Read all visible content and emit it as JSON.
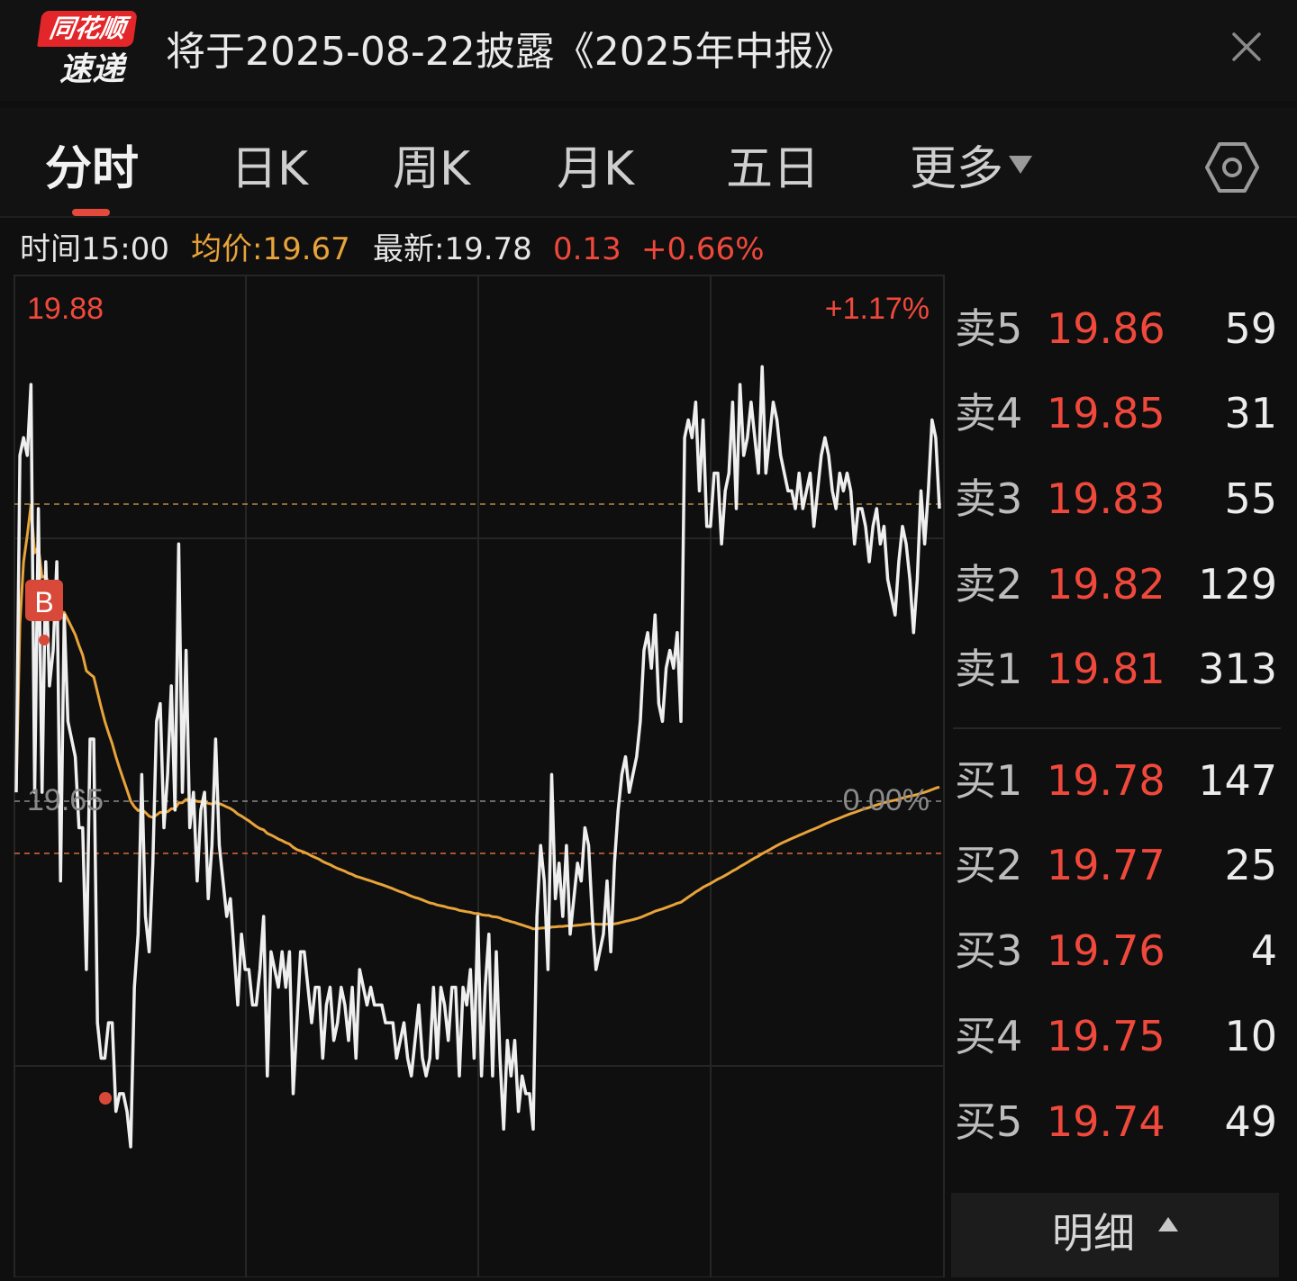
{
  "header": {
    "logo_top": "同花顺",
    "logo_bottom": "速递",
    "headline": "将于2025-08-22披露《2025年中报》",
    "close_icon": "close-icon"
  },
  "tabs": [
    {
      "label": "分时",
      "active": true
    },
    {
      "label": "日K"
    },
    {
      "label": "周K"
    },
    {
      "label": "月K"
    },
    {
      "label": "五日"
    },
    {
      "label": "更多"
    }
  ],
  "settings_icon": "hexagon-settings-icon",
  "info": {
    "time": "时间15:00",
    "avg": "均价:19.67",
    "latest": "最新:19.78",
    "change": "0.13",
    "change_pct": "+0.66%"
  },
  "colors": {
    "up": "#f0493c",
    "avg_line": "#e8a33a",
    "price_line": "#efefef",
    "background": "#0f0f0f"
  },
  "chart_data": {
    "type": "line",
    "ylabel_top": "19.88",
    "ylabel_mid": "19.65",
    "pct_top": "+1.17%",
    "pct_mid": "0.00%",
    "ylim": [
      19.42,
      19.88
    ],
    "prev_close": 19.65,
    "avg_price": 19.67,
    "buy_marker": "B",
    "series": [
      {
        "values": [
          19.62,
          19.81,
          19.82,
          19.81,
          19.85,
          19.62,
          19.78,
          19.62,
          19.75,
          19.68,
          19.7,
          19.75,
          19.57,
          19.72,
          19.66,
          19.65,
          19.64,
          19.6,
          19.6,
          19.52,
          19.65,
          19.65,
          19.49,
          19.47,
          19.47,
          19.49,
          19.49,
          19.44,
          19.45,
          19.45,
          19.44,
          19.42,
          19.51,
          19.54,
          19.63,
          19.55,
          19.53,
          19.58,
          19.66,
          19.67,
          19.6,
          19.63,
          19.68,
          19.61,
          19.76,
          19.62,
          19.7,
          19.6,
          19.62,
          19.57,
          19.61,
          19.62,
          19.56,
          19.59,
          19.65,
          19.59,
          19.57,
          19.55,
          19.56,
          19.53,
          19.5,
          19.54,
          19.52,
          19.52,
          19.5,
          19.5,
          19.52,
          19.55,
          19.46,
          19.53,
          19.52,
          19.51,
          19.53,
          19.51,
          19.53,
          19.45,
          19.49,
          19.53,
          19.53,
          19.51,
          19.49,
          19.51,
          19.51,
          19.47,
          19.5,
          19.51,
          19.48,
          19.49,
          19.51,
          19.5,
          19.48,
          19.51,
          19.47,
          19.52,
          19.51,
          19.5,
          19.51,
          19.5,
          19.5,
          19.5,
          19.49,
          19.49,
          19.49,
          19.47,
          19.48,
          19.49,
          19.47,
          19.46,
          19.48,
          19.5,
          19.47,
          19.46,
          19.47,
          19.51,
          19.47,
          19.51,
          19.5,
          19.48,
          19.51,
          19.51,
          19.46,
          19.51,
          19.5,
          19.52,
          19.47,
          19.55,
          19.46,
          19.51,
          19.54,
          19.46,
          19.53,
          19.47,
          19.43,
          19.48,
          19.46,
          19.48,
          19.44,
          19.46,
          19.45,
          19.45,
          19.43,
          19.55,
          19.59,
          19.57,
          19.52,
          19.63,
          19.56,
          19.58,
          19.55,
          19.59,
          19.54,
          19.56,
          19.58,
          19.57,
          19.6,
          19.59,
          19.55,
          19.52,
          19.53,
          19.54,
          19.57,
          19.53,
          19.58,
          19.61,
          19.63,
          19.64,
          19.62,
          19.63,
          19.64,
          19.66,
          19.7,
          19.71,
          19.69,
          19.72,
          19.67,
          19.66,
          19.69,
          19.7,
          19.69,
          19.71,
          19.66,
          19.82,
          19.83,
          19.82,
          19.84,
          19.79,
          19.83,
          19.77,
          19.77,
          19.8,
          19.8,
          19.76,
          19.79,
          19.8,
          19.84,
          19.78,
          19.85,
          19.81,
          19.82,
          19.84,
          19.82,
          19.8,
          19.86,
          19.8,
          19.82,
          19.84,
          19.83,
          19.81,
          19.8,
          19.79,
          19.79,
          19.78,
          19.8,
          19.78,
          19.79,
          19.8,
          19.77,
          19.79,
          19.81,
          19.82,
          19.81,
          19.79,
          19.78,
          19.8,
          19.79,
          19.8,
          19.79,
          19.76,
          19.78,
          19.78,
          19.77,
          19.75,
          19.77,
          19.78,
          19.76,
          19.77,
          19.74,
          19.73,
          19.72,
          19.75,
          19.77,
          19.76,
          19.74,
          19.71,
          19.74,
          19.79,
          19.76,
          19.79,
          19.83,
          19.82,
          19.78
        ]
      }
    ]
  },
  "orderbook": {
    "sell": [
      {
        "label": "卖5",
        "price": "19.86",
        "volume": "59"
      },
      {
        "label": "卖4",
        "price": "19.85",
        "volume": "31"
      },
      {
        "label": "卖3",
        "price": "19.83",
        "volume": "55"
      },
      {
        "label": "卖2",
        "price": "19.82",
        "volume": "129"
      },
      {
        "label": "卖1",
        "price": "19.81",
        "volume": "313"
      }
    ],
    "buy": [
      {
        "label": "买1",
        "price": "19.78",
        "volume": "147"
      },
      {
        "label": "买2",
        "price": "19.77",
        "volume": "25"
      },
      {
        "label": "买3",
        "price": "19.76",
        "volume": "4"
      },
      {
        "label": "买4",
        "price": "19.75",
        "volume": "10"
      },
      {
        "label": "买5",
        "price": "19.74",
        "volume": "49"
      }
    ]
  },
  "detail_button": "明细"
}
